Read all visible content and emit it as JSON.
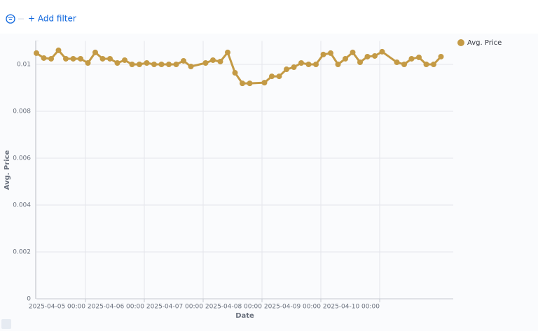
{
  "filter_bar": {
    "add_filter": "+ Add filter"
  },
  "chart_data": {
    "type": "line",
    "x_label": "Date",
    "y_label": "Avg. Price",
    "x": [
      "2025-04-04 04:00",
      "2025-04-04 07:00",
      "2025-04-04 10:00",
      "2025-04-04 13:00",
      "2025-04-04 16:00",
      "2025-04-04 19:00",
      "2025-04-04 22:00",
      "2025-04-05 01:00",
      "2025-04-05 04:00",
      "2025-04-05 07:00",
      "2025-04-05 10:00",
      "2025-04-05 13:00",
      "2025-04-05 16:00",
      "2025-04-05 19:00",
      "2025-04-05 22:00",
      "2025-04-06 01:00",
      "2025-04-06 04:00",
      "2025-04-06 07:00",
      "2025-04-06 10:00",
      "2025-04-06 13:00",
      "2025-04-06 16:00",
      "2025-04-06 19:00",
      "2025-04-07 01:00",
      "2025-04-07 04:00",
      "2025-04-07 07:00",
      "2025-04-07 10:00",
      "2025-04-07 13:00",
      "2025-04-07 16:00",
      "2025-04-07 19:00",
      "2025-04-08 01:00",
      "2025-04-08 04:00",
      "2025-04-08 07:00",
      "2025-04-08 10:00",
      "2025-04-08 13:00",
      "2025-04-08 16:00",
      "2025-04-08 19:00",
      "2025-04-08 22:00",
      "2025-04-09 01:00",
      "2025-04-09 04:00",
      "2025-04-09 07:00",
      "2025-04-09 10:00",
      "2025-04-09 13:00",
      "2025-04-09 16:00",
      "2025-04-09 19:00",
      "2025-04-09 22:00",
      "2025-04-10 01:00",
      "2025-04-10 07:00",
      "2025-04-10 10:00",
      "2025-04-10 13:00",
      "2025-04-10 16:00",
      "2025-04-10 19:00",
      "2025-04-10 22:00",
      "2025-04-11 01:00"
    ],
    "series": [
      {
        "name": "Avg. Price",
        "color": "#c49a45",
        "values": [
          0.01048,
          0.01027,
          0.01024,
          0.0106,
          0.01024,
          0.01024,
          0.01024,
          0.01006,
          0.01051,
          0.01024,
          0.01024,
          0.01006,
          0.01018,
          0.01,
          0.01,
          0.01006,
          0.01,
          0.01,
          0.01,
          0.01,
          0.01015,
          0.00991,
          0.01006,
          0.01018,
          0.01012,
          0.01051,
          0.00964,
          0.00919,
          0.00919,
          0.00922,
          0.00949,
          0.00949,
          0.00979,
          0.00988,
          0.01006,
          0.01,
          0.01,
          0.01042,
          0.01048,
          0.01,
          0.01024,
          0.01051,
          0.01009,
          0.01033,
          0.01036,
          0.01054,
          0.01009,
          0.01,
          0.01024,
          0.0103,
          0.01,
          0.01,
          0.01033
        ]
      }
    ],
    "xlim": [
      "2025-04-04 04:00",
      "2025-04-11 06:00"
    ],
    "xticks": [
      "2025-04-05 00:00",
      "2025-04-06 00:00",
      "2025-04-07 00:00",
      "2025-04-08 00:00",
      "2025-04-09 00:00",
      "2025-04-10 00:00"
    ],
    "ylim": [
      0,
      0.011
    ],
    "yticks": [
      0,
      0.002,
      0.004,
      0.006,
      0.008,
      0.01
    ],
    "grid": true,
    "legend": "top-right"
  }
}
